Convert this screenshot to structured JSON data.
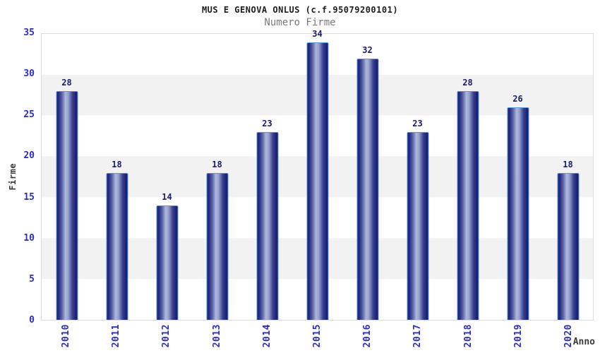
{
  "header": {
    "title": "MUS E GENOVA ONLUS (c.f.95079200101)",
    "subtitle": "Numero Firme"
  },
  "chart_data": {
    "type": "bar",
    "title": "MUS E GENOVA ONLUS (c.f.95079200101)",
    "subtitle": "Numero Firme",
    "categories": [
      "2010",
      "2011",
      "2012",
      "2013",
      "2014",
      "2015",
      "2016",
      "2017",
      "2018",
      "2019",
      "2020"
    ],
    "values": [
      28,
      18,
      14,
      18,
      23,
      34,
      32,
      23,
      28,
      26,
      18
    ],
    "xlabel": "Anno",
    "ylabel": "Firme",
    "ylim": [
      0,
      35
    ],
    "yticks": [
      0,
      5,
      10,
      15,
      20,
      25,
      30,
      35
    ],
    "grid": "horizontal-bands-every-5",
    "legend": "none",
    "colors": {
      "bar_dark": "#1b2078",
      "bar_highlight": "#aeb7da",
      "bar_border": "#5b9bd5",
      "tick_label": "#2b2bce",
      "value_label": "#1a1a70",
      "axis_title": "#3a3a3a",
      "title": "#1c1c1c",
      "subtitle": "#7a7a7a",
      "band_gray": "#f2f2f2",
      "plot_border": "#dcdcdc",
      "background": "#ffffff"
    }
  }
}
